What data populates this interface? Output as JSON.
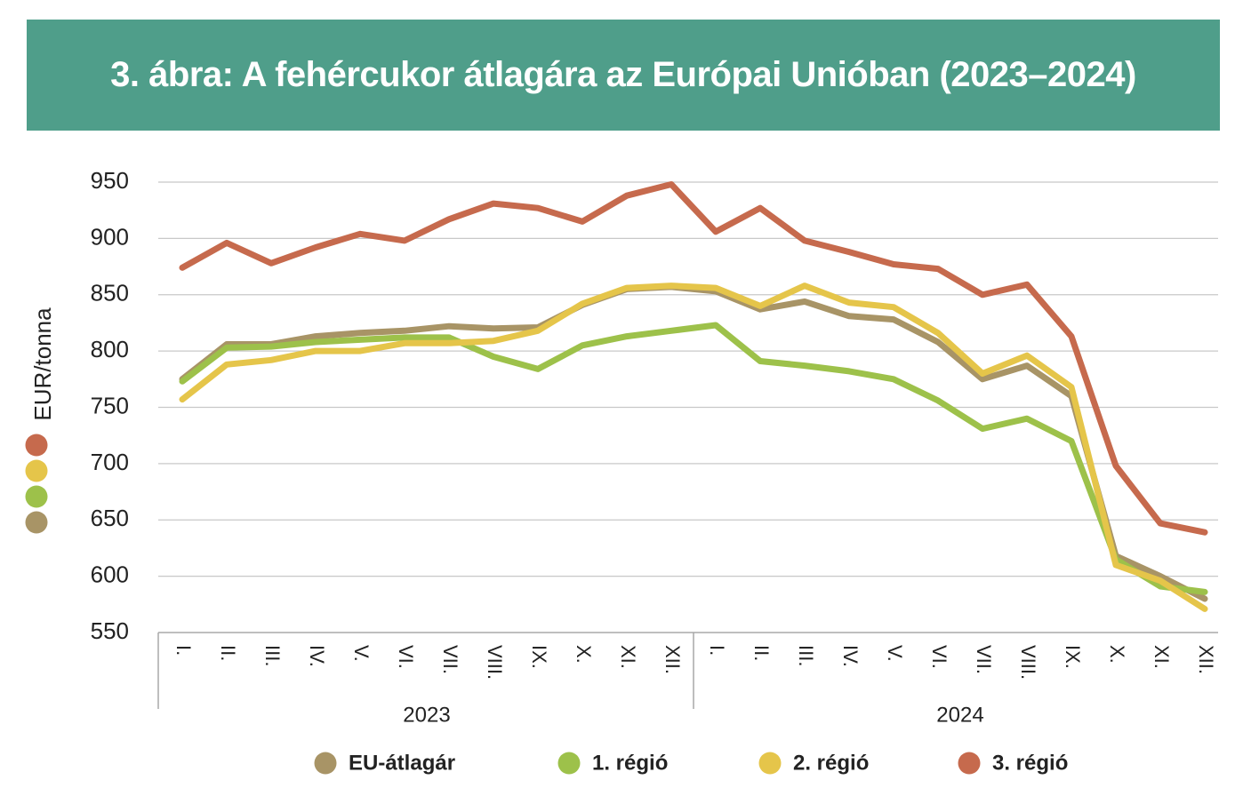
{
  "header": {
    "title": "3. ábra: A fehércukor átlagára az Európai Unióban (2023–2024)"
  },
  "chart_data": {
    "type": "line",
    "title": "3. ábra: A fehércukor átlagára az Európai Unióban (2023–2024)",
    "ylabel": "EUR/tonna",
    "xlabel": "",
    "ylim": [
      550,
      950
    ],
    "yticks": [
      550,
      600,
      650,
      700,
      750,
      800,
      850,
      900,
      950
    ],
    "grid": true,
    "legend_position": "bottom",
    "groups": [
      {
        "label": "2023",
        "categories": [
          "I.",
          "II.",
          "III.",
          "IV.",
          "V.",
          "VI.",
          "VII.",
          "VIII.",
          "IX.",
          "X.",
          "XI.",
          "XII."
        ]
      },
      {
        "label": "2024",
        "categories": [
          "I.",
          "II.",
          "III.",
          "IV.",
          "V.",
          "VI.",
          "VII.",
          "VIII.",
          "IX.",
          "X.",
          "XI.",
          "XII."
        ]
      }
    ],
    "series": [
      {
        "name": "EU-átlagár",
        "color": "#a89466",
        "values": [
          775,
          806,
          806,
          813,
          816,
          818,
          822,
          820,
          821,
          841,
          855,
          857,
          853,
          837,
          844,
          831,
          828,
          808,
          775,
          787,
          760,
          618,
          600,
          580
        ]
      },
      {
        "name": "1. régió",
        "color": "#9dc14a",
        "values": [
          773,
          803,
          804,
          808,
          810,
          812,
          812,
          795,
          784,
          805,
          813,
          818,
          823,
          791,
          787,
          782,
          775,
          756,
          731,
          740,
          720,
          615,
          591,
          586
        ]
      },
      {
        "name": "2. régió",
        "color": "#e5c54a",
        "values": [
          757,
          788,
          792,
          800,
          800,
          807,
          807,
          809,
          818,
          842,
          856,
          858,
          856,
          840,
          858,
          843,
          839,
          816,
          780,
          796,
          768,
          610,
          596,
          571
        ]
      },
      {
        "name": "3. régió",
        "color": "#c66a4d",
        "values": [
          874,
          896,
          878,
          892,
          904,
          898,
          917,
          931,
          927,
          915,
          938,
          948,
          906,
          927,
          898,
          888,
          877,
          873,
          850,
          859,
          813,
          698,
          647,
          639
        ]
      }
    ]
  }
}
